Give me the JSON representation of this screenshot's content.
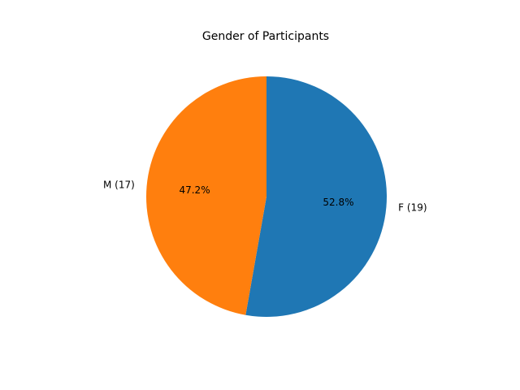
{
  "chart_data": {
    "type": "pie",
    "title": "Gender of Participants",
    "slices": [
      {
        "label": "F (19)",
        "value": 19,
        "percent_label": "52.8%",
        "color": "#1f77b4"
      },
      {
        "label": "M (17)",
        "value": 17,
        "percent_label": "47.2%",
        "color": "#ff7f0e"
      }
    ],
    "start_angle_deg": 90,
    "direction": "clockwise"
  }
}
